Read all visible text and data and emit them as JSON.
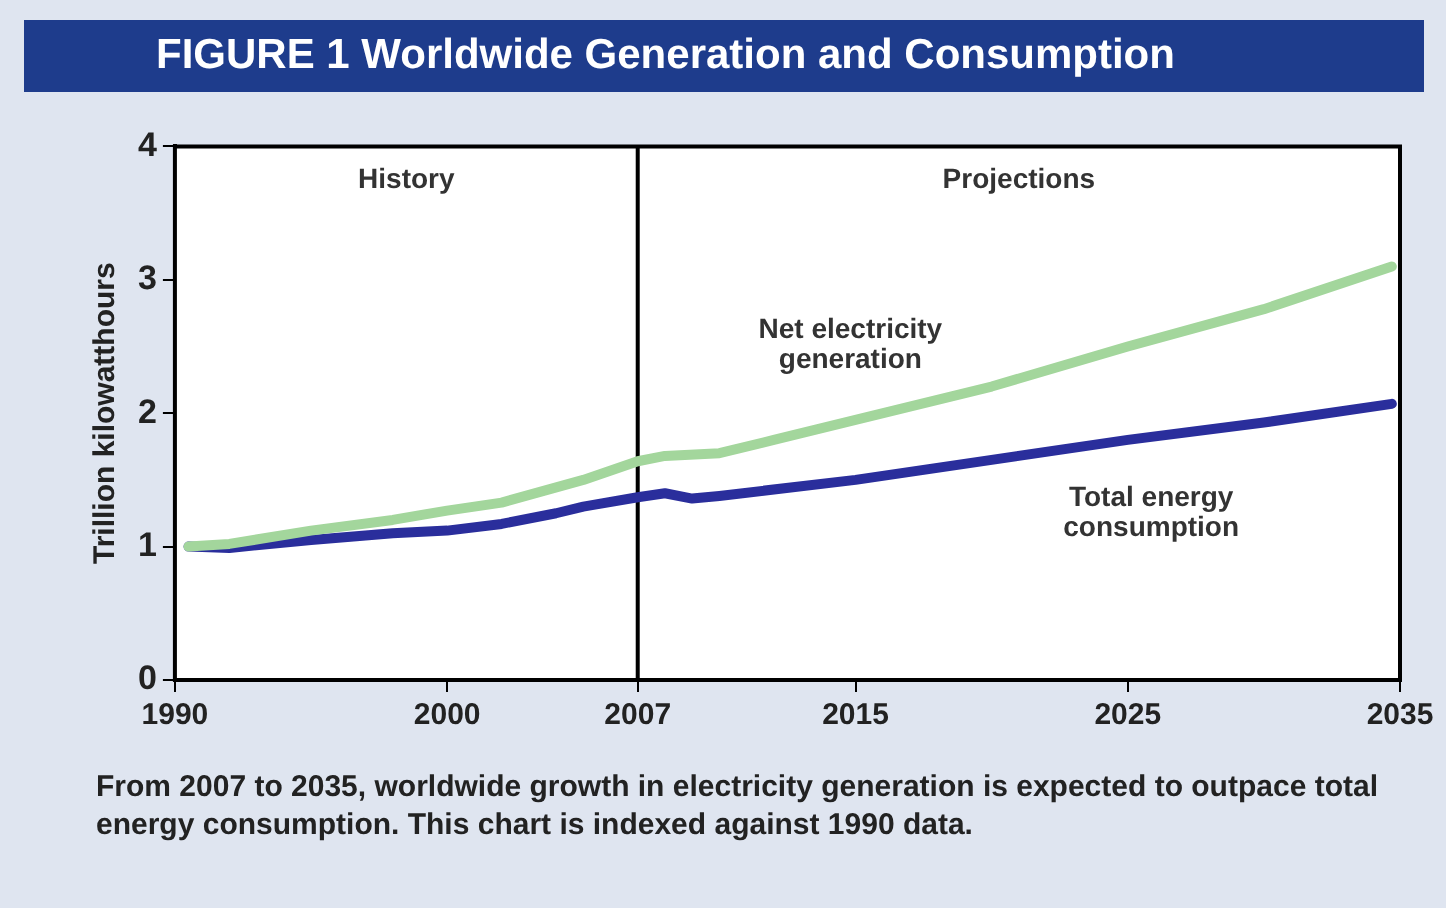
{
  "chart_data": {
    "type": "line",
    "title": "FIGURE 1 Worldwide Generation and Consumption",
    "ylabel": "Trillion kilowatthours",
    "xlim": [
      1990,
      2035
    ],
    "xticks": [
      1990,
      2000,
      2007,
      2015,
      2025,
      2035
    ],
    "ylim": [
      0,
      4
    ],
    "yticks": [
      0,
      1,
      2,
      3,
      4
    ],
    "grid": false,
    "legend": false,
    "marker": "none",
    "line_style": "solid",
    "series": [
      {
        "name": "Net electricity generation",
        "color": "#a3d69c",
        "x": [
          1990.5,
          1992,
          1995,
          1998,
          2000,
          2002,
          2005,
          2007,
          2008,
          2010,
          2012,
          2015,
          2020,
          2025,
          2030,
          2034.7
        ],
        "values": [
          1.0,
          1.02,
          1.12,
          1.2,
          1.27,
          1.33,
          1.5,
          1.64,
          1.68,
          1.7,
          1.8,
          1.95,
          2.2,
          2.5,
          2.78,
          3.1
        ]
      },
      {
        "name": "Total energy consumption",
        "color": "#2a2e9c",
        "x": [
          1990.5,
          1992,
          1995,
          1998,
          2000,
          2002,
          2004,
          2005,
          2007,
          2008,
          2009,
          2010,
          2015,
          2020,
          2025,
          2030,
          2034.7
        ],
        "values": [
          1.0,
          0.99,
          1.05,
          1.1,
          1.12,
          1.17,
          1.25,
          1.3,
          1.37,
          1.4,
          1.36,
          1.38,
          1.5,
          1.65,
          1.8,
          1.93,
          2.07
        ]
      }
    ],
    "ref_lines": [
      {
        "axis": "x",
        "value": 2007,
        "color": "#000000"
      }
    ],
    "bands": [
      {
        "axis": "x",
        "from": 1990,
        "to": 2007,
        "label": "History",
        "color": "#ffffff"
      },
      {
        "axis": "x",
        "from": 2007,
        "to": 2035,
        "label": "Projections",
        "color": "#ffffff"
      }
    ],
    "annotations": [
      "From 2007 to 2035, worldwide growth in electricity generation is expected to outpace total energy consumption. This chart is indexed against 1990 data."
    ]
  }
}
